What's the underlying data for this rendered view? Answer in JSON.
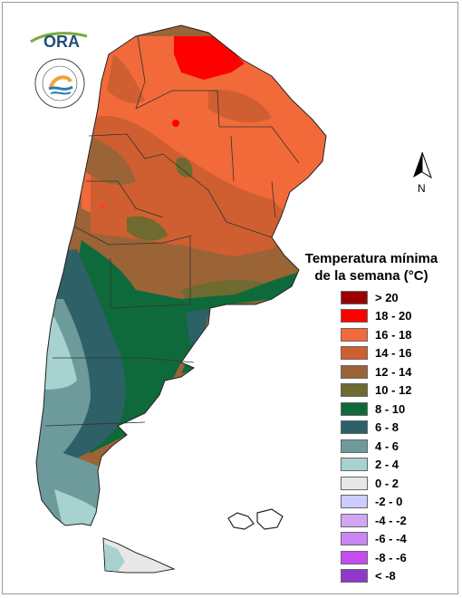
{
  "logos": {
    "ora_text": "ORA",
    "smn_ring_text": "SERVICIO METEOROLÓGICO NACIONAL",
    "smn_country_text": "ARGENTINA"
  },
  "north_arrow": {
    "label": "N"
  },
  "legend": {
    "title_line1": "Temperatura mínima",
    "title_line2": "de la semana (°C)",
    "items": [
      {
        "label": "> 20",
        "color": "#9b0000"
      },
      {
        "label": "18 - 20",
        "color": "#ff0000"
      },
      {
        "label": "16 - 18",
        "color": "#f26a3a"
      },
      {
        "label": "14 - 16",
        "color": "#cf5f30"
      },
      {
        "label": "12 - 14",
        "color": "#9a6437"
      },
      {
        "label": "10 - 12",
        "color": "#6e6a30"
      },
      {
        "label": "8 - 10",
        "color": "#0e6a3a"
      },
      {
        "label": "6 - 8",
        "color": "#2e6068"
      },
      {
        "label": "4 - 6",
        "color": "#6d9a9a"
      },
      {
        "label": "2 - 4",
        "color": "#a8d2cf"
      },
      {
        "label": "0 - 2",
        "color": "#e8e8e8"
      },
      {
        "label": "-2 - 0",
        "color": "#ccccff"
      },
      {
        "label": "-4 - -2",
        "color": "#d0a6f5"
      },
      {
        "label": "-6 - -4",
        "color": "#c987f2"
      },
      {
        "label": "-8 - -6",
        "color": "#c54df0"
      },
      {
        "label": "< -8",
        "color": "#8f38c9"
      }
    ]
  }
}
